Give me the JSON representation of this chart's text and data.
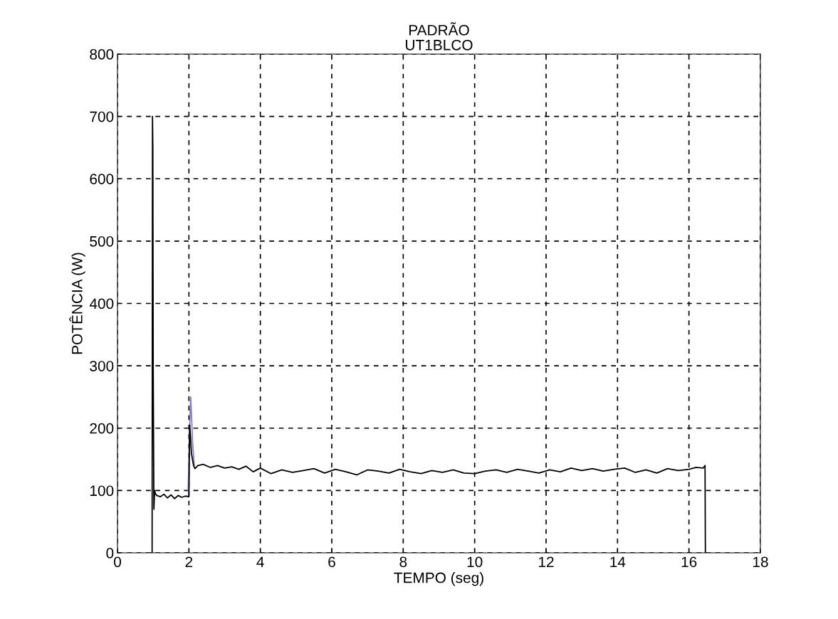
{
  "chart_data": {
    "type": "line",
    "title": "PADRÃO\nUT1BLCO",
    "xlabel": "TEMPO (seg)",
    "ylabel": "POTÊNCIA (W)",
    "xlim": [
      0,
      18
    ],
    "ylim": [
      0,
      800
    ],
    "xticks": [
      0,
      2,
      4,
      6,
      8,
      10,
      12,
      14,
      16,
      18
    ],
    "yticks": [
      0,
      100,
      200,
      300,
      400,
      500,
      600,
      700,
      800
    ],
    "grid": true,
    "line_style": "solid",
    "legend": false,
    "series": [
      {
        "color": "#7f7fc8",
        "x": [
          1.98,
          2.02,
          2.05,
          2.08,
          2.1,
          2.15
        ],
        "values": [
          100,
          200,
          250,
          210,
          180,
          140
        ]
      },
      {
        "color": "#000000",
        "x": [
          0.96,
          0.97,
          0.98,
          0.99,
          1.0,
          1.02,
          1.04,
          1.06,
          1.1,
          1.2,
          1.3,
          1.4,
          1.5,
          1.6,
          1.7,
          1.8,
          1.9,
          2.0,
          2.02,
          2.04,
          2.07,
          2.1,
          2.13,
          2.17,
          2.25,
          2.4,
          2.6,
          2.8,
          3.0,
          3.2,
          3.4,
          3.6,
          3.8,
          4.0,
          4.3,
          4.6,
          4.9,
          5.2,
          5.5,
          5.8,
          6.1,
          6.4,
          6.7,
          7.0,
          7.3,
          7.6,
          7.9,
          8.2,
          8.5,
          8.8,
          9.1,
          9.4,
          9.7,
          10.0,
          10.3,
          10.6,
          10.9,
          11.2,
          11.5,
          11.8,
          12.1,
          12.4,
          12.7,
          13.0,
          13.3,
          13.6,
          13.9,
          14.2,
          14.5,
          14.8,
          15.1,
          15.4,
          15.7,
          16.0,
          16.2,
          16.4,
          16.45,
          16.46
        ],
        "values": [
          0,
          0,
          700,
          650,
          300,
          70,
          100,
          95,
          92,
          90,
          94,
          88,
          93,
          87,
          92,
          89,
          91,
          90,
          205,
          190,
          160,
          150,
          140,
          135,
          140,
          142,
          137,
          140,
          136,
          138,
          134,
          139,
          130,
          136,
          127,
          133,
          129,
          132,
          135,
          128,
          134,
          130,
          125,
          133,
          131,
          128,
          134,
          130,
          127,
          132,
          129,
          133,
          128,
          127,
          131,
          133,
          129,
          134,
          131,
          128,
          133,
          130,
          136,
          132,
          135,
          131,
          134,
          136,
          129,
          133,
          128,
          135,
          132,
          134,
          137,
          136,
          140,
          0
        ]
      }
    ]
  }
}
